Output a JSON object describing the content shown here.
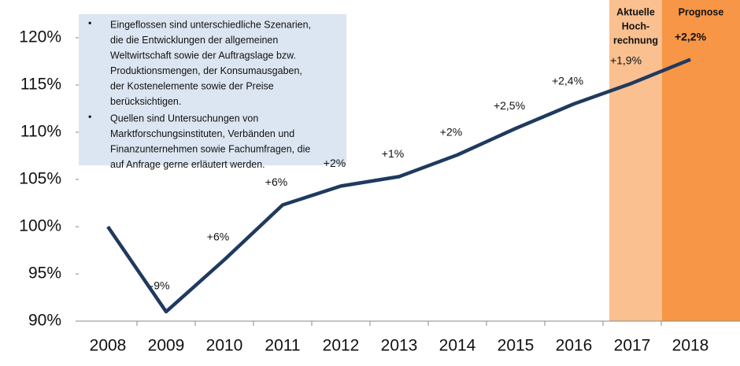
{
  "chart_data": {
    "type": "line",
    "categories": [
      "2008",
      "2009",
      "2010",
      "2011",
      "2012",
      "2013",
      "2014",
      "2015",
      "2016",
      "2017",
      "2018"
    ],
    "series": [
      {
        "color": "#1f3a5f",
        "values": [
          100,
          91,
          96.5,
          102.3,
          104.3,
          105.3,
          107.6,
          110.4,
          113,
          115.2,
          117.7
        ]
      }
    ],
    "growth_labels": [
      null,
      "-9%",
      "+6%",
      "+6%",
      "+2%",
      "+1%",
      "+2%",
      "+2,5%",
      "+2,4%",
      "+1,9%",
      "+2,2%"
    ],
    "ylim": [
      90,
      120
    ],
    "yticks": [
      {
        "value": 90,
        "label": "90%"
      },
      {
        "value": 95,
        "label": "95%"
      },
      {
        "value": 100,
        "label": "100%"
      },
      {
        "value": 105,
        "label": "105%"
      },
      {
        "value": 110,
        "label": "110%"
      },
      {
        "value": 115,
        "label": "115%"
      },
      {
        "value": 120,
        "label": "120%"
      }
    ],
    "highlights": [
      {
        "category": "2017",
        "color": "#fac090",
        "lines": [
          "Aktuelle",
          "Hoch-",
          "rechnung"
        ]
      },
      {
        "category": "2018",
        "color": "#f79646",
        "lines": [
          "Prognose"
        ]
      }
    ],
    "note_bullets": [
      [
        "Eingeflossen sind unterschiedliche Szenarien,",
        "die die Entwicklungen der allgemeinen",
        "Weltwirtschaft sowie der Auftragslage bzw.",
        "Produktionsmengen, der Konsumausgaben,",
        "der Kostenelemente sowie der Preise",
        "berücksichtigen."
      ],
      [
        "Quellen sind Untersuchungen von",
        "Marktforschungsinstituten,  Verbänden und",
        "Finanzunternehmen sowie Fachumfragen, die",
        "auf Anfrage gerne erläutert werden."
      ]
    ]
  }
}
